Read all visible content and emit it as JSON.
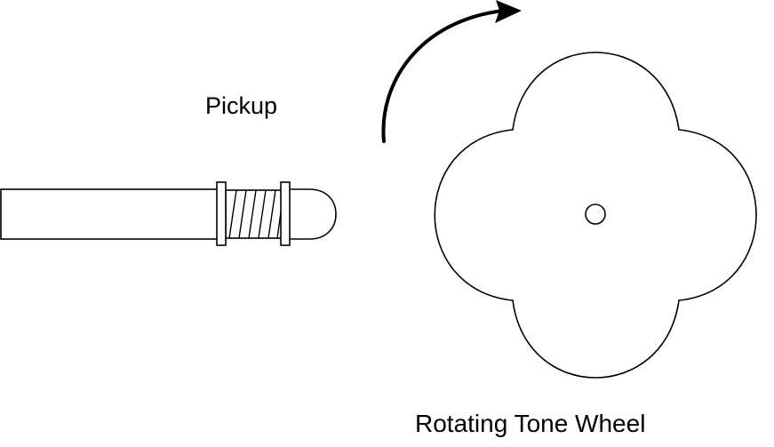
{
  "labels": {
    "pickup": "Pickup",
    "wheel": "Rotating Tone Wheel"
  },
  "colors": {
    "stroke": "#000000",
    "background": "#ffffff"
  },
  "icons": {
    "rotation": "curved-arrow-icon"
  }
}
